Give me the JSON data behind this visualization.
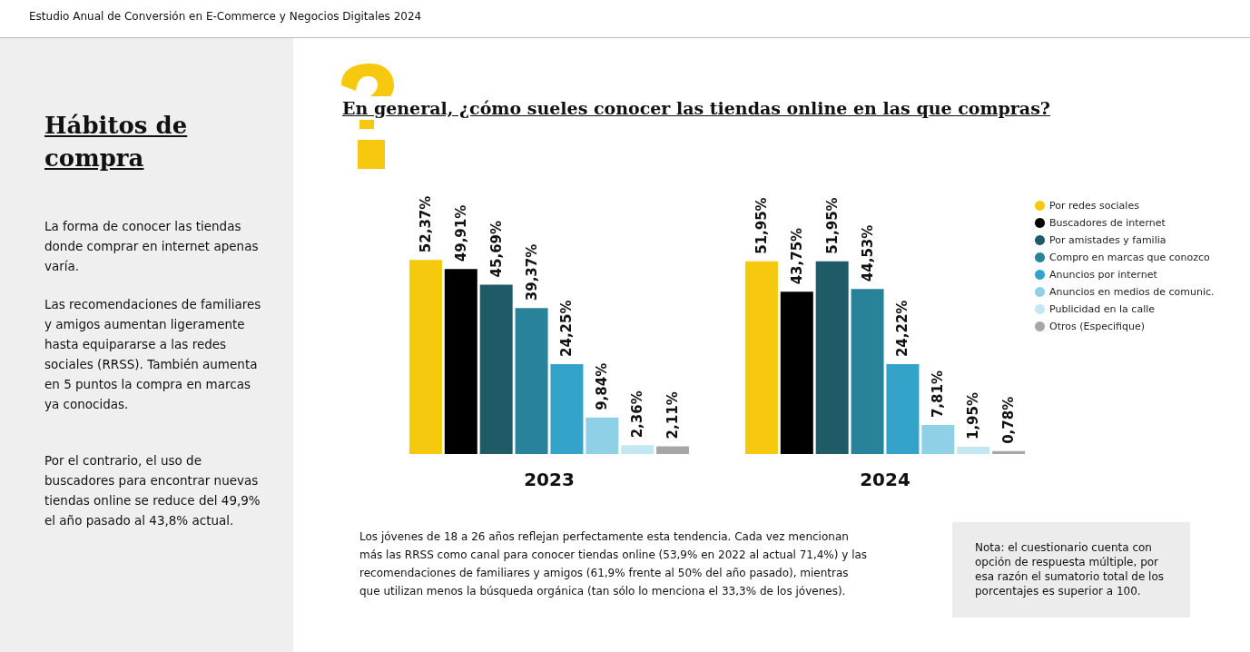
{
  "chart_data": {
    "type": "bar",
    "title": "En general, ¿cómo sueles conocer las tiendas online en las que compras?",
    "categories": [
      "2023",
      "2024"
    ],
    "series": [
      {
        "name": "Por redes sociales",
        "color": "#f6c90e",
        "values": [
          52.37,
          51.95
        ],
        "value_labels": [
          "52,37%",
          "51,95%"
        ]
      },
      {
        "name": "Buscadores de internet",
        "color": "#000000",
        "values": [
          49.91,
          43.75
        ],
        "value_labels": [
          "49,91%",
          "43,75%"
        ]
      },
      {
        "name": "Por amistades y familia",
        "color": "#1f5b66",
        "values": [
          45.69,
          51.95
        ],
        "value_labels": [
          "45,69%",
          "51,95%"
        ]
      },
      {
        "name": "Compro en marcas que conozco",
        "color": "#28829a",
        "values": [
          39.37,
          44.53
        ],
        "value_labels": [
          "39,37%",
          "44,53%"
        ]
      },
      {
        "name": "Anuncios por internet",
        "color": "#33a3c9",
        "values": [
          24.25,
          24.22
        ],
        "value_labels": [
          "24,25%",
          "24,22%"
        ]
      },
      {
        "name": "Anuncios en medios de comunic.",
        "color": "#8ed1e7",
        "values": [
          9.84,
          7.81
        ],
        "value_labels": [
          "9,84%",
          "7,81%"
        ]
      },
      {
        "name": "Publicidad en la calle",
        "color": "#c3e7f3",
        "values": [
          2.36,
          1.95
        ],
        "value_labels": [
          "2,36%",
          "1,95%"
        ]
      },
      {
        "name": "Otros (Especifique)",
        "color": "#a6a6a6",
        "values": [
          2.11,
          0.78
        ],
        "value_labels": [
          "2,11%",
          "0,78%"
        ]
      }
    ],
    "grid": false,
    "legend": "right",
    "tick_labels": "x",
    "annotations": [
      "Estudio Anual de Conversión en E-Commerce y Negocios Digitales 2024",
      "Hábitos de compra",
      "La forma de conocer las tiendas donde comprar en internet apenas varía.",
      "Las recomendaciones de familiares y amigos aumentan ligeramente hasta equipararse a las redes sociales (RRSS). También aumenta en 5 puntos la compra en marcas ya conocidas.",
      "Por el contrario, el uso de buscadores para encontrar nuevas tiendas online se reduce del 49,9% el año pasado al 43,8% actual.",
      "Los jóvenes de 18 a 26 años reflejan perfectamente esta tendencia. Cada vez mencionan más las RRSS como canal para conocer tiendas online (53,9% en 2022 al actual 71,4%) y las recomendaciones de familiares y amigos (61,9% frente al 50% del año pasado), mientras que utilizan menos la búsqueda orgánica (tan sólo lo menciona el 33,3% de los jóvenes).",
      "Nota: el cuestionario cuenta con opción de respuesta múltiple, por esa razón el sumatorio total de los porcentajes es superior a 100."
    ]
  }
}
